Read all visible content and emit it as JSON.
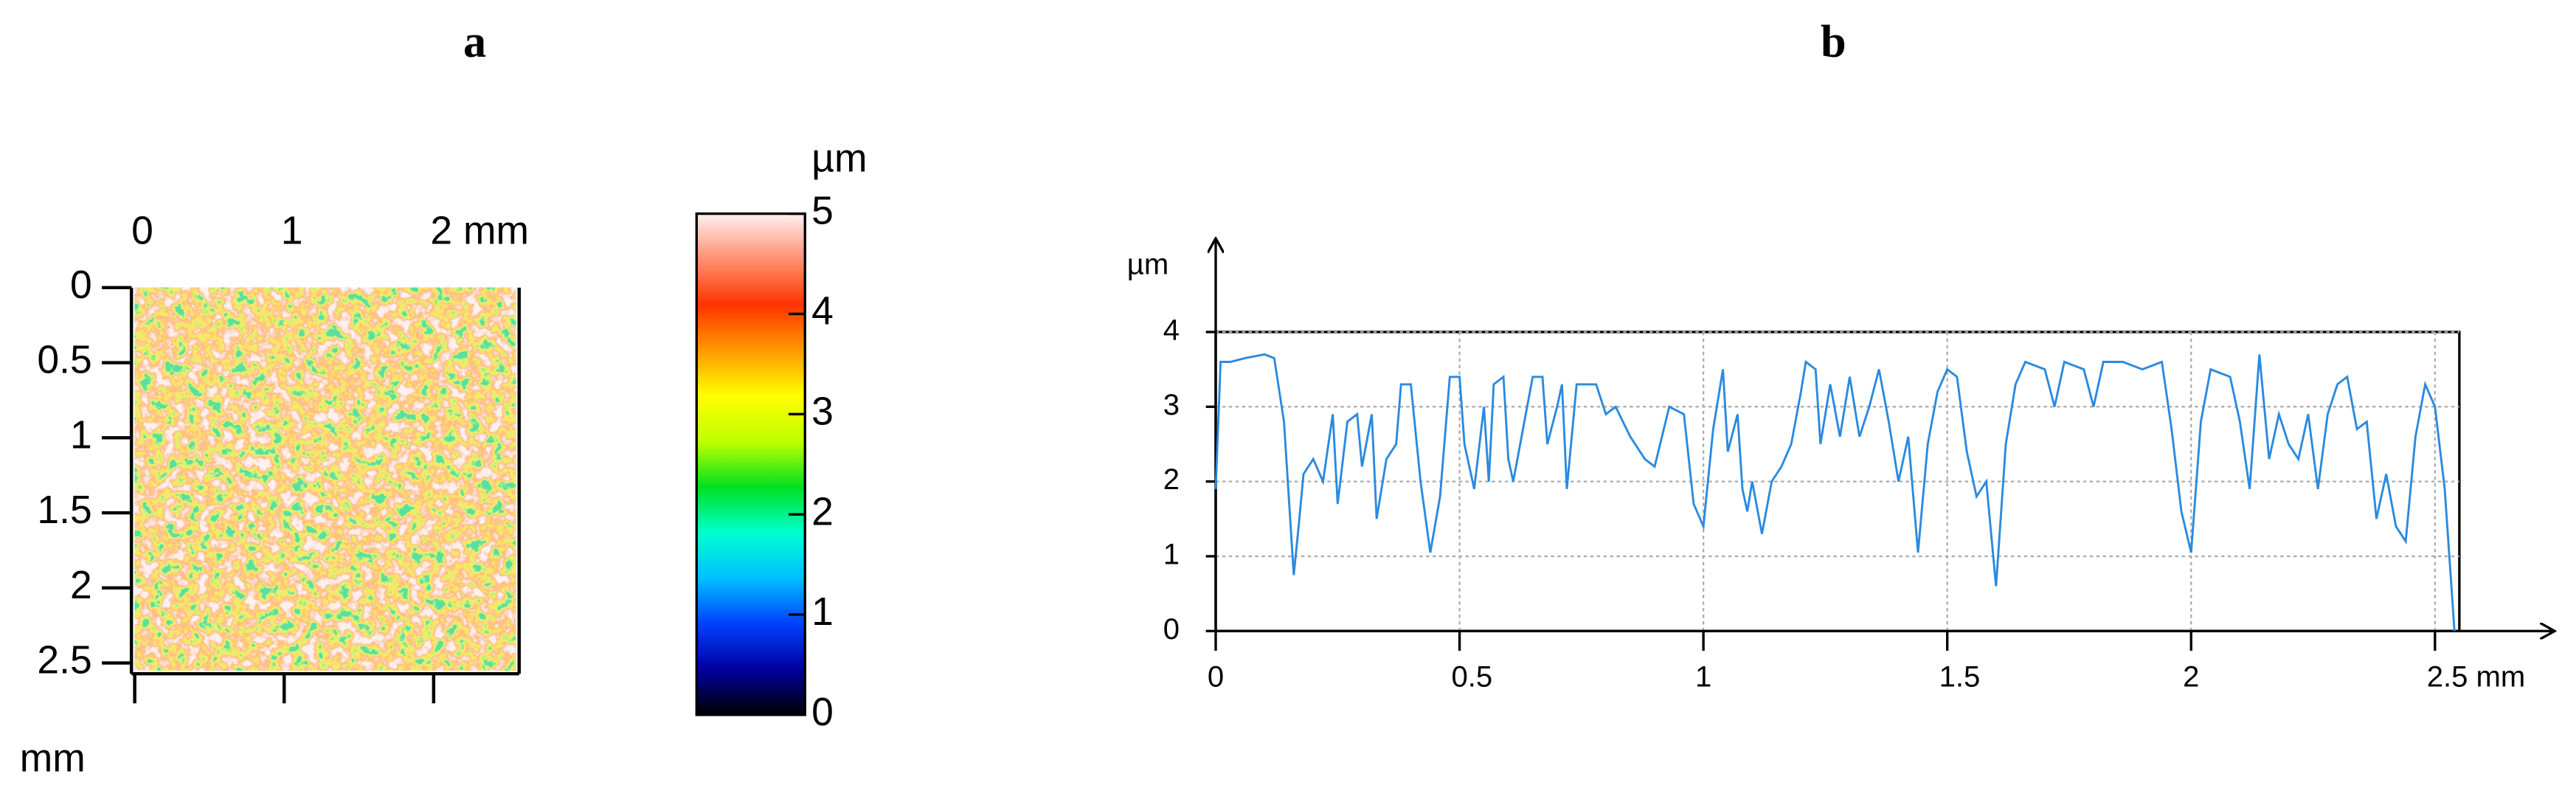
{
  "chart_data": [
    {
      "type": "surface",
      "title": "a",
      "xlim": [
        0,
        2.55
      ],
      "ylim": [
        0,
        2.55
      ],
      "xticks": [
        0,
        1,
        {
          "value": 2,
          "label": "2 mm"
        }
      ],
      "yticks": [
        0,
        0.5,
        1,
        1.5,
        2,
        2.5
      ],
      "y_label": "mm",
      "colorbar": {
        "label": "µm",
        "lim": [
          0,
          5
        ],
        "ticks": [
          0,
          1,
          2,
          3,
          4,
          5
        ],
        "colors": [
          "#000000",
          "#0000a0",
          "#0040ff",
          "#00c0ff",
          "#00ffd0",
          "#00e020",
          "#c0ff00",
          "#ffff00",
          "#ff9900",
          "#ff3300",
          "#ff9070",
          "#fff0f0"
        ]
      }
    },
    {
      "type": "line",
      "title": "b",
      "xlim": [
        0,
        2.55
      ],
      "ylim": [
        0,
        4
      ],
      "xticks": [
        0,
        0.5,
        1,
        1.5,
        2,
        {
          "value": 2.5,
          "label": "2.5 mm"
        }
      ],
      "yticks": [
        0,
        1,
        2,
        3,
        4
      ],
      "y_label": "µm",
      "grid": true,
      "x": [
        0,
        0.01,
        0.03,
        0.06,
        0.1,
        0.12,
        0.14,
        0.16,
        0.17,
        0.18,
        0.2,
        0.22,
        0.24,
        0.25,
        0.27,
        0.29,
        0.3,
        0.32,
        0.33,
        0.35,
        0.37,
        0.38,
        0.4,
        0.42,
        0.44,
        0.46,
        0.48,
        0.5,
        0.51,
        0.53,
        0.55,
        0.56,
        0.57,
        0.59,
        0.6,
        0.61,
        0.63,
        0.65,
        0.67,
        0.68,
        0.7,
        0.71,
        0.72,
        0.74,
        0.78,
        0.8,
        0.82,
        0.85,
        0.88,
        0.9,
        0.93,
        0.96,
        0.98,
        1.0,
        1.02,
        1.04,
        1.05,
        1.07,
        1.08,
        1.09,
        1.1,
        1.12,
        1.14,
        1.16,
        1.18,
        1.2,
        1.21,
        1.23,
        1.24,
        1.26,
        1.28,
        1.3,
        1.32,
        1.34,
        1.36,
        1.38,
        1.4,
        1.42,
        1.44,
        1.46,
        1.48,
        1.5,
        1.52,
        1.54,
        1.56,
        1.58,
        1.6,
        1.62,
        1.64,
        1.66,
        1.7,
        1.72,
        1.74,
        1.78,
        1.8,
        1.82,
        1.86,
        1.9,
        1.94,
        1.96,
        1.98,
        2.0,
        2.02,
        2.04,
        2.08,
        2.1,
        2.12,
        2.14,
        2.16,
        2.18,
        2.2,
        2.22,
        2.24,
        2.26,
        2.28,
        2.3,
        2.32,
        2.34,
        2.36,
        2.38,
        2.4,
        2.42,
        2.44,
        2.46,
        2.48,
        2.5,
        2.52,
        2.54
      ],
      "series": [
        {
          "color": "#2a8ae0",
          "values": [
            1.9,
            3.6,
            3.6,
            3.65,
            3.7,
            3.65,
            2.8,
            0.75,
            1.4,
            2.1,
            2.3,
            2.0,
            2.9,
            1.7,
            2.8,
            2.9,
            2.2,
            2.9,
            1.5,
            2.3,
            2.5,
            3.3,
            3.3,
            2.0,
            1.05,
            1.8,
            3.4,
            3.4,
            2.5,
            1.9,
            3.0,
            2.0,
            3.3,
            3.4,
            2.3,
            2.0,
            2.7,
            3.4,
            3.4,
            2.5,
            3.0,
            3.3,
            1.9,
            3.3,
            3.3,
            2.9,
            3.0,
            2.6,
            2.3,
            2.2,
            3.0,
            2.9,
            1.7,
            1.4,
            2.7,
            3.5,
            2.4,
            2.9,
            1.9,
            1.6,
            2.0,
            1.3,
            2.0,
            2.2,
            2.5,
            3.2,
            3.6,
            3.5,
            2.5,
            3.3,
            2.6,
            3.4,
            2.6,
            3.0,
            3.5,
            2.8,
            2.0,
            2.6,
            1.05,
            2.5,
            3.2,
            3.5,
            3.4,
            2.4,
            1.8,
            2.0,
            0.6,
            2.5,
            3.3,
            3.6,
            3.5,
            3.0,
            3.6,
            3.5,
            3.0,
            3.6,
            3.6,
            3.5,
            3.6,
            2.7,
            1.6,
            1.05,
            2.8,
            3.5,
            3.4,
            2.8,
            1.9,
            3.7,
            2.3,
            2.9,
            2.5,
            2.3,
            2.9,
            1.9,
            2.9,
            3.3,
            3.4,
            2.7,
            2.8,
            1.5,
            2.1,
            1.4,
            1.2,
            2.6,
            3.3,
            3.0,
            1.9,
            0.0
          ]
        }
      ]
    }
  ]
}
